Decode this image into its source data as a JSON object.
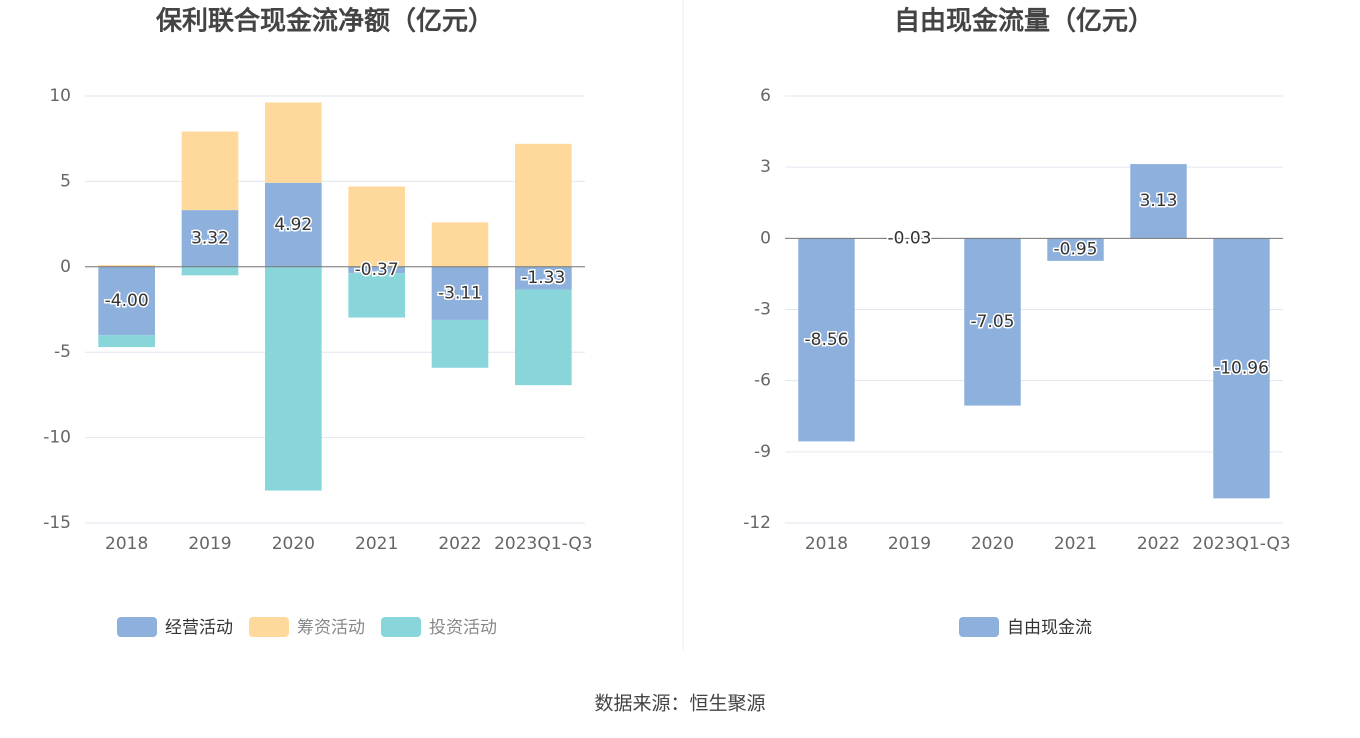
{
  "chart_data": [
    {
      "type": "bar",
      "title": "保利联合现金流净额（亿元）",
      "stack": true,
      "categories": [
        "2018",
        "2019",
        "2020",
        "2021",
        "2022",
        "2023Q1-Q3"
      ],
      "series": [
        {
          "name": "经营活动",
          "color": "#8eb0dc",
          "values": [
            -4.0,
            3.32,
            4.92,
            -0.37,
            -3.11,
            -1.33
          ],
          "value_labels": [
            "-4.00",
            "3.32",
            "4.92",
            "-0.37",
            "-3.11",
            "-1.33"
          ]
        },
        {
          "name": "筹资活动",
          "color": "#ffd99b",
          "values": [
            0.1,
            4.6,
            4.7,
            4.7,
            2.6,
            7.2
          ]
        },
        {
          "name": "投资活动",
          "color": "#88d6da",
          "values": [
            -0.7,
            -0.5,
            -13.1,
            -2.6,
            -2.8,
            -5.6
          ]
        }
      ],
      "ylim": [
        -15,
        10
      ],
      "yticks": [
        -15,
        -10,
        -5,
        0,
        5,
        10
      ],
      "grid": true
    },
    {
      "type": "bar",
      "title": "自由现金流量（亿元）",
      "categories": [
        "2018",
        "2019",
        "2020",
        "2021",
        "2022",
        "2023Q1-Q3"
      ],
      "series": [
        {
          "name": "自由现金流",
          "color": "#8eb0dc",
          "values": [
            -8.56,
            -0.03,
            -7.05,
            -0.95,
            3.13,
            -10.96
          ]
        }
      ],
      "ylim": [
        -12,
        6
      ],
      "yticks": [
        -12,
        -9,
        -6,
        -3,
        0,
        3,
        6
      ],
      "grid": true
    }
  ],
  "footer": "数据来源：恒生聚源"
}
